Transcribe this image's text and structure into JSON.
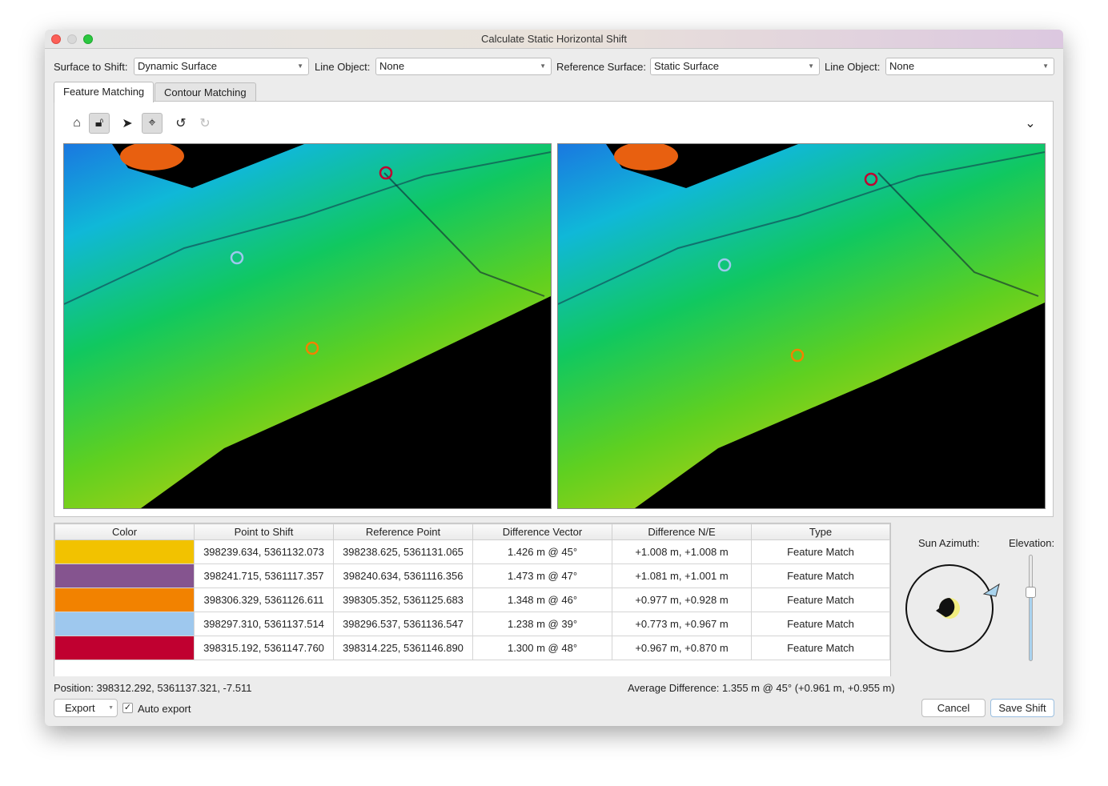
{
  "window": {
    "title": "Calculate Static Horizontal Shift"
  },
  "controls": {
    "surface_label": "Surface to Shift:",
    "surface_value": "Dynamic Surface",
    "line1_label": "Line Object:",
    "line1_value": "None",
    "ref_label": "Reference Surface:",
    "ref_value": "Static Surface",
    "line2_label": "Line Object:",
    "line2_value": "None"
  },
  "tabs": [
    {
      "label": "Feature Matching",
      "active": true
    },
    {
      "label": "Contour Matching",
      "active": false
    }
  ],
  "toolbar": {
    "icons": [
      "home-icon",
      "lock-icon",
      "pointer-icon",
      "crosshair-icon",
      "undo-icon",
      "redo-icon"
    ],
    "collapse_icon": "chevron-down-icon"
  },
  "table": {
    "headers": [
      "Color",
      "Point to Shift",
      "Reference Point",
      "Difference Vector",
      "Difference N/E",
      "Type"
    ],
    "rows": [
      {
        "color": "#f2c200",
        "shift": "398239.634, 5361132.073",
        "ref": "398238.625, 5361131.065",
        "vector": "1.426 m @ 45°",
        "ne": "+1.008 m, +1.008 m",
        "type": "Feature Match"
      },
      {
        "color": "#85548f",
        "shift": "398241.715, 5361117.357",
        "ref": "398240.634, 5361116.356",
        "vector": "1.473 m @ 47°",
        "ne": "+1.081 m, +1.001 m",
        "type": "Feature Match"
      },
      {
        "color": "#f28200",
        "shift": "398306.329, 5361126.611",
        "ref": "398305.352, 5361125.683",
        "vector": "1.348 m @ 46°",
        "ne": "+0.977 m, +0.928 m",
        "type": "Feature Match"
      },
      {
        "color": "#9ec8ee",
        "shift": "398297.310, 5361137.514",
        "ref": "398296.537, 5361136.547",
        "vector": "1.238 m @ 39°",
        "ne": "+0.773 m, +0.967 m",
        "type": "Feature Match"
      },
      {
        "color": "#c00030",
        "shift": "398315.192, 5361147.760",
        "ref": "398314.225, 5361146.890",
        "vector": "1.300 m @ 48°",
        "ne": "+0.967 m, +0.870 m",
        "type": "Feature Match"
      }
    ]
  },
  "status": {
    "position": "Position: 398312.292, 5361137.321, -7.511",
    "average": "Average Difference: 1.355 m @ 45° (+0.961 m, +0.955 m)"
  },
  "sun": {
    "azimuth_label": "Sun Azimuth:",
    "elevation_label": "Elevation:",
    "azimuth_deg": 45,
    "elevation_fraction": 0.7
  },
  "footer": {
    "export": "Export",
    "auto_export": "Auto export",
    "auto_export_checked": true,
    "cancel": "Cancel",
    "save": "Save Shift"
  }
}
